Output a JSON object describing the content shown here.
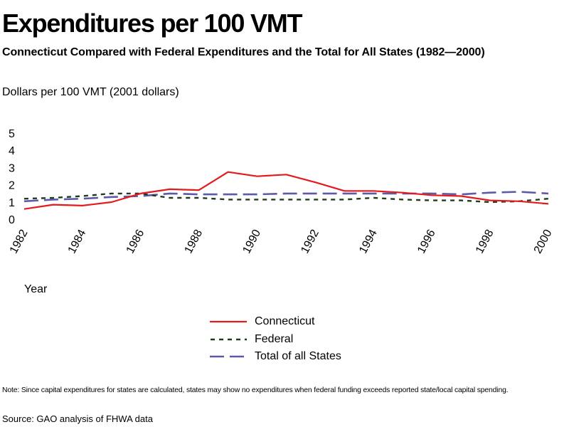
{
  "chart_data": {
    "type": "line",
    "title": "Expenditures per 100 VMT",
    "subtitle": "Connecticut Compared with Federal Expenditures and the Total for All States (1982—2000)",
    "ylabel": "Dollars per 100 VMT (2001 dollars)",
    "xlabel": "Year",
    "ylim": [
      0,
      5
    ],
    "yticks": [
      "0",
      "1",
      "2",
      "3",
      "4",
      "5"
    ],
    "xlim": [
      1982,
      2000
    ],
    "xticks": [
      "1982",
      "1984",
      "1986",
      "1988",
      "1990",
      "1992",
      "1994",
      "1996",
      "1998",
      "2000"
    ],
    "grid": false,
    "legend_position": "bottom-center",
    "x": [
      1982,
      1983,
      1984,
      1985,
      1986,
      1987,
      1988,
      1989,
      1990,
      1991,
      1992,
      1993,
      1994,
      1995,
      1996,
      1997,
      1998,
      1999,
      2000
    ],
    "series": [
      {
        "name": "Connecticut",
        "color": "#e41a1c",
        "style": "solid",
        "values": [
          0.55,
          0.8,
          0.75,
          0.95,
          1.45,
          1.7,
          1.65,
          2.7,
          2.45,
          2.55,
          2.1,
          1.6,
          1.6,
          1.5,
          1.35,
          1.3,
          1.05,
          1.0,
          0.85
        ]
      },
      {
        "name": "Federal",
        "color": "#1e3d1e",
        "style": "dashed",
        "values": [
          1.15,
          1.2,
          1.3,
          1.45,
          1.45,
          1.2,
          1.2,
          1.1,
          1.1,
          1.1,
          1.1,
          1.1,
          1.2,
          1.1,
          1.05,
          1.05,
          0.95,
          1.0,
          1.15
        ]
      },
      {
        "name": "Total of all States",
        "color": "#5b5ba8",
        "style": "longdash",
        "values": [
          1.0,
          1.1,
          1.15,
          1.25,
          1.3,
          1.45,
          1.4,
          1.4,
          1.4,
          1.45,
          1.45,
          1.45,
          1.45,
          1.45,
          1.45,
          1.4,
          1.5,
          1.55,
          1.45
        ]
      }
    ]
  },
  "note": "Note: Since capital expenditures for states are calculated, states may show no expenditures when federal funding exceeds reported state/local capital spending.",
  "source": "Source: GAO analysis of FHWA data"
}
